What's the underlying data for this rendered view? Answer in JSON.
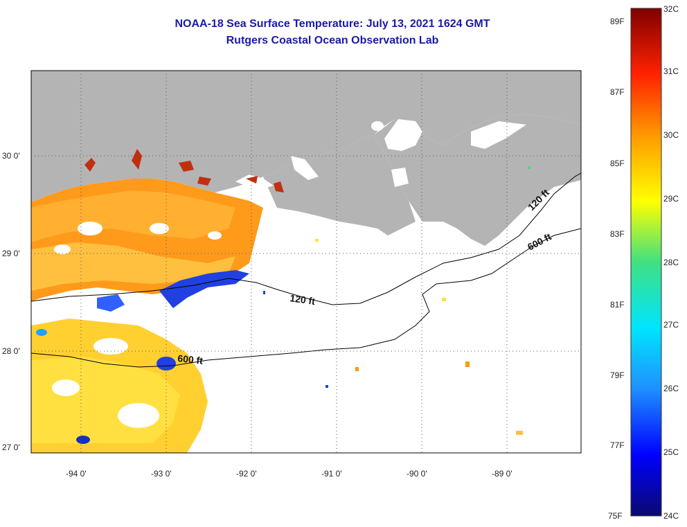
{
  "title_line1": "NOAA-18 Sea Surface Temperature:  July 13, 2021 1624 GMT",
  "title_line2": "Rutgers Coastal Ocean Observation Lab",
  "lat_labels": [
    "30 0'",
    "29 0'",
    "28 0'",
    "27 0'"
  ],
  "lon_labels": [
    "-94 0'",
    "-93 0'",
    "-92 0'",
    "-91 0'",
    "-90 0'",
    "-89 0'"
  ],
  "contour_labels": [
    "120 ft",
    "600 ft",
    "120 ft",
    "600 ft"
  ],
  "colorbar": {
    "celsius": [
      "32C",
      "31C",
      "30C",
      "29C",
      "28C",
      "27C",
      "26C",
      "25C",
      "24C"
    ],
    "fahrenheit": [
      "89F",
      "87F",
      "85F",
      "83F",
      "81F",
      "79F",
      "77F",
      "75F"
    ]
  },
  "colors": {
    "land": "#b4b4b4",
    "title": "#1a1aa8",
    "no_data": "#ffffff"
  }
}
